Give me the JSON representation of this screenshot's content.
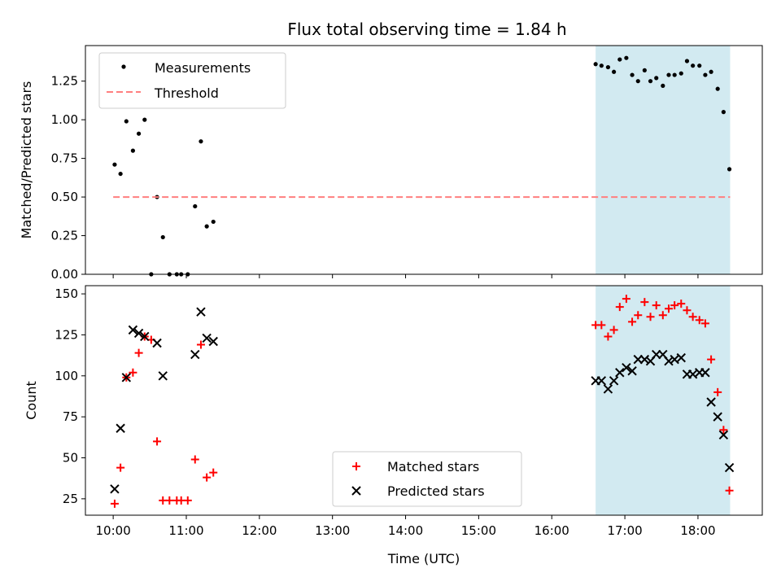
{
  "title": "Flux total observing time = 1.84 h",
  "colors": {
    "measurement": "#000000",
    "threshold": "#ff7f7f",
    "matched": "#ff0000",
    "predicted": "#000000",
    "shade": "#add8e6"
  },
  "chart_data": [
    {
      "type": "scatter",
      "ylabel": "Matched/Predicted stars",
      "xlim": [
        9.62,
        18.88
      ],
      "ylim": [
        0,
        1.48
      ],
      "yticks": [
        "0.00",
        "0.25",
        "0.50",
        "0.75",
        "1.00",
        "1.25"
      ],
      "yticks_values": [
        0,
        0.25,
        0.5,
        0.75,
        1.0,
        1.25
      ],
      "shaded_region": [
        16.6,
        18.44
      ],
      "legend": {
        "position": "top-left"
      },
      "series": [
        {
          "name": "Measurements",
          "marker": "dot",
          "points": [
            [
              10.02,
              0.71
            ],
            [
              10.1,
              0.65
            ],
            [
              10.18,
              0.99
            ],
            [
              10.27,
              0.8
            ],
            [
              10.35,
              0.91
            ],
            [
              10.43,
              1.0
            ],
            [
              10.52,
              0.0
            ],
            [
              10.6,
              0.5
            ],
            [
              10.68,
              0.24
            ],
            [
              10.77,
              0.0
            ],
            [
              10.87,
              0.0
            ],
            [
              10.93,
              0.0
            ],
            [
              11.02,
              0.0
            ],
            [
              11.12,
              0.44
            ],
            [
              11.2,
              0.86
            ],
            [
              11.28,
              0.31
            ],
            [
              11.37,
              0.34
            ],
            [
              16.6,
              1.36
            ],
            [
              16.68,
              1.35
            ],
            [
              16.77,
              1.34
            ],
            [
              16.85,
              1.31
            ],
            [
              16.93,
              1.39
            ],
            [
              17.02,
              1.4
            ],
            [
              17.1,
              1.29
            ],
            [
              17.18,
              1.25
            ],
            [
              17.27,
              1.32
            ],
            [
              17.35,
              1.25
            ],
            [
              17.43,
              1.27
            ],
            [
              17.52,
              1.22
            ],
            [
              17.6,
              1.29
            ],
            [
              17.68,
              1.29
            ],
            [
              17.77,
              1.3
            ],
            [
              17.85,
              1.38
            ],
            [
              17.93,
              1.35
            ],
            [
              18.02,
              1.35
            ],
            [
              18.1,
              1.29
            ],
            [
              18.18,
              1.31
            ],
            [
              18.27,
              1.2
            ],
            [
              18.35,
              1.05
            ],
            [
              18.43,
              0.68
            ]
          ]
        },
        {
          "name": "Threshold",
          "marker": "dashed-line",
          "x": [
            10.0,
            18.44
          ],
          "y": [
            0.5,
            0.5
          ]
        }
      ]
    },
    {
      "type": "scatter",
      "xlabel": "Time (UTC)",
      "ylabel": "Count",
      "xlim": [
        9.62,
        18.88
      ],
      "ylim": [
        15,
        155
      ],
      "yticks": [
        "25",
        "50",
        "75",
        "100",
        "125",
        "150"
      ],
      "yticks_values": [
        25,
        50,
        75,
        100,
        125,
        150
      ],
      "xticks": [
        "10:00",
        "11:00",
        "12:00",
        "13:00",
        "14:00",
        "15:00",
        "16:00",
        "17:00",
        "18:00"
      ],
      "xticks_values": [
        10,
        11,
        12,
        13,
        14,
        15,
        16,
        17,
        18
      ],
      "shaded_region": [
        16.6,
        18.44
      ],
      "legend": {
        "position": "lower-center"
      },
      "series": [
        {
          "name": "Matched stars",
          "marker": "plus",
          "points": [
            [
              10.02,
              22
            ],
            [
              10.1,
              44
            ],
            [
              10.18,
              99
            ],
            [
              10.27,
              102
            ],
            [
              10.35,
              114
            ],
            [
              10.43,
              124
            ],
            [
              10.52,
              122
            ],
            [
              10.6,
              60
            ],
            [
              10.68,
              24
            ],
            [
              10.77,
              24
            ],
            [
              10.87,
              24
            ],
            [
              10.93,
              24
            ],
            [
              11.02,
              24
            ],
            [
              11.12,
              49
            ],
            [
              11.2,
              119
            ],
            [
              11.28,
              38
            ],
            [
              11.37,
              41
            ],
            [
              16.6,
              131
            ],
            [
              16.68,
              131
            ],
            [
              16.77,
              124
            ],
            [
              16.85,
              128
            ],
            [
              16.93,
              142
            ],
            [
              17.02,
              147
            ],
            [
              17.1,
              133
            ],
            [
              17.18,
              137
            ],
            [
              17.27,
              145
            ],
            [
              17.35,
              136
            ],
            [
              17.43,
              143
            ],
            [
              17.52,
              137
            ],
            [
              17.6,
              141
            ],
            [
              17.68,
              143
            ],
            [
              17.77,
              144
            ],
            [
              17.85,
              140
            ],
            [
              17.93,
              136
            ],
            [
              18.02,
              134
            ],
            [
              18.1,
              132
            ],
            [
              18.18,
              110
            ],
            [
              18.27,
              90
            ],
            [
              18.35,
              67
            ],
            [
              18.43,
              30
            ]
          ]
        },
        {
          "name": "Predicted stars",
          "marker": "x",
          "points": [
            [
              10.02,
              31
            ],
            [
              10.1,
              68
            ],
            [
              10.18,
              99
            ],
            [
              10.27,
              128
            ],
            [
              10.35,
              126
            ],
            [
              10.43,
              124
            ],
            [
              10.6,
              120
            ],
            [
              10.68,
              100
            ],
            [
              11.12,
              113
            ],
            [
              11.2,
              139
            ],
            [
              11.28,
              123
            ],
            [
              11.37,
              121
            ],
            [
              16.6,
              97
            ],
            [
              16.68,
              97
            ],
            [
              16.77,
              92
            ],
            [
              16.85,
              97
            ],
            [
              16.93,
              102
            ],
            [
              17.02,
              105
            ],
            [
              17.1,
              103
            ],
            [
              17.18,
              110
            ],
            [
              17.27,
              110
            ],
            [
              17.35,
              109
            ],
            [
              17.43,
              113
            ],
            [
              17.52,
              113
            ],
            [
              17.6,
              109
            ],
            [
              17.68,
              110
            ],
            [
              17.77,
              111
            ],
            [
              17.85,
              101
            ],
            [
              17.93,
              101
            ],
            [
              18.02,
              102
            ],
            [
              18.1,
              102
            ],
            [
              18.18,
              84
            ],
            [
              18.27,
              75
            ],
            [
              18.35,
              64
            ],
            [
              18.43,
              44
            ]
          ]
        }
      ]
    }
  ]
}
